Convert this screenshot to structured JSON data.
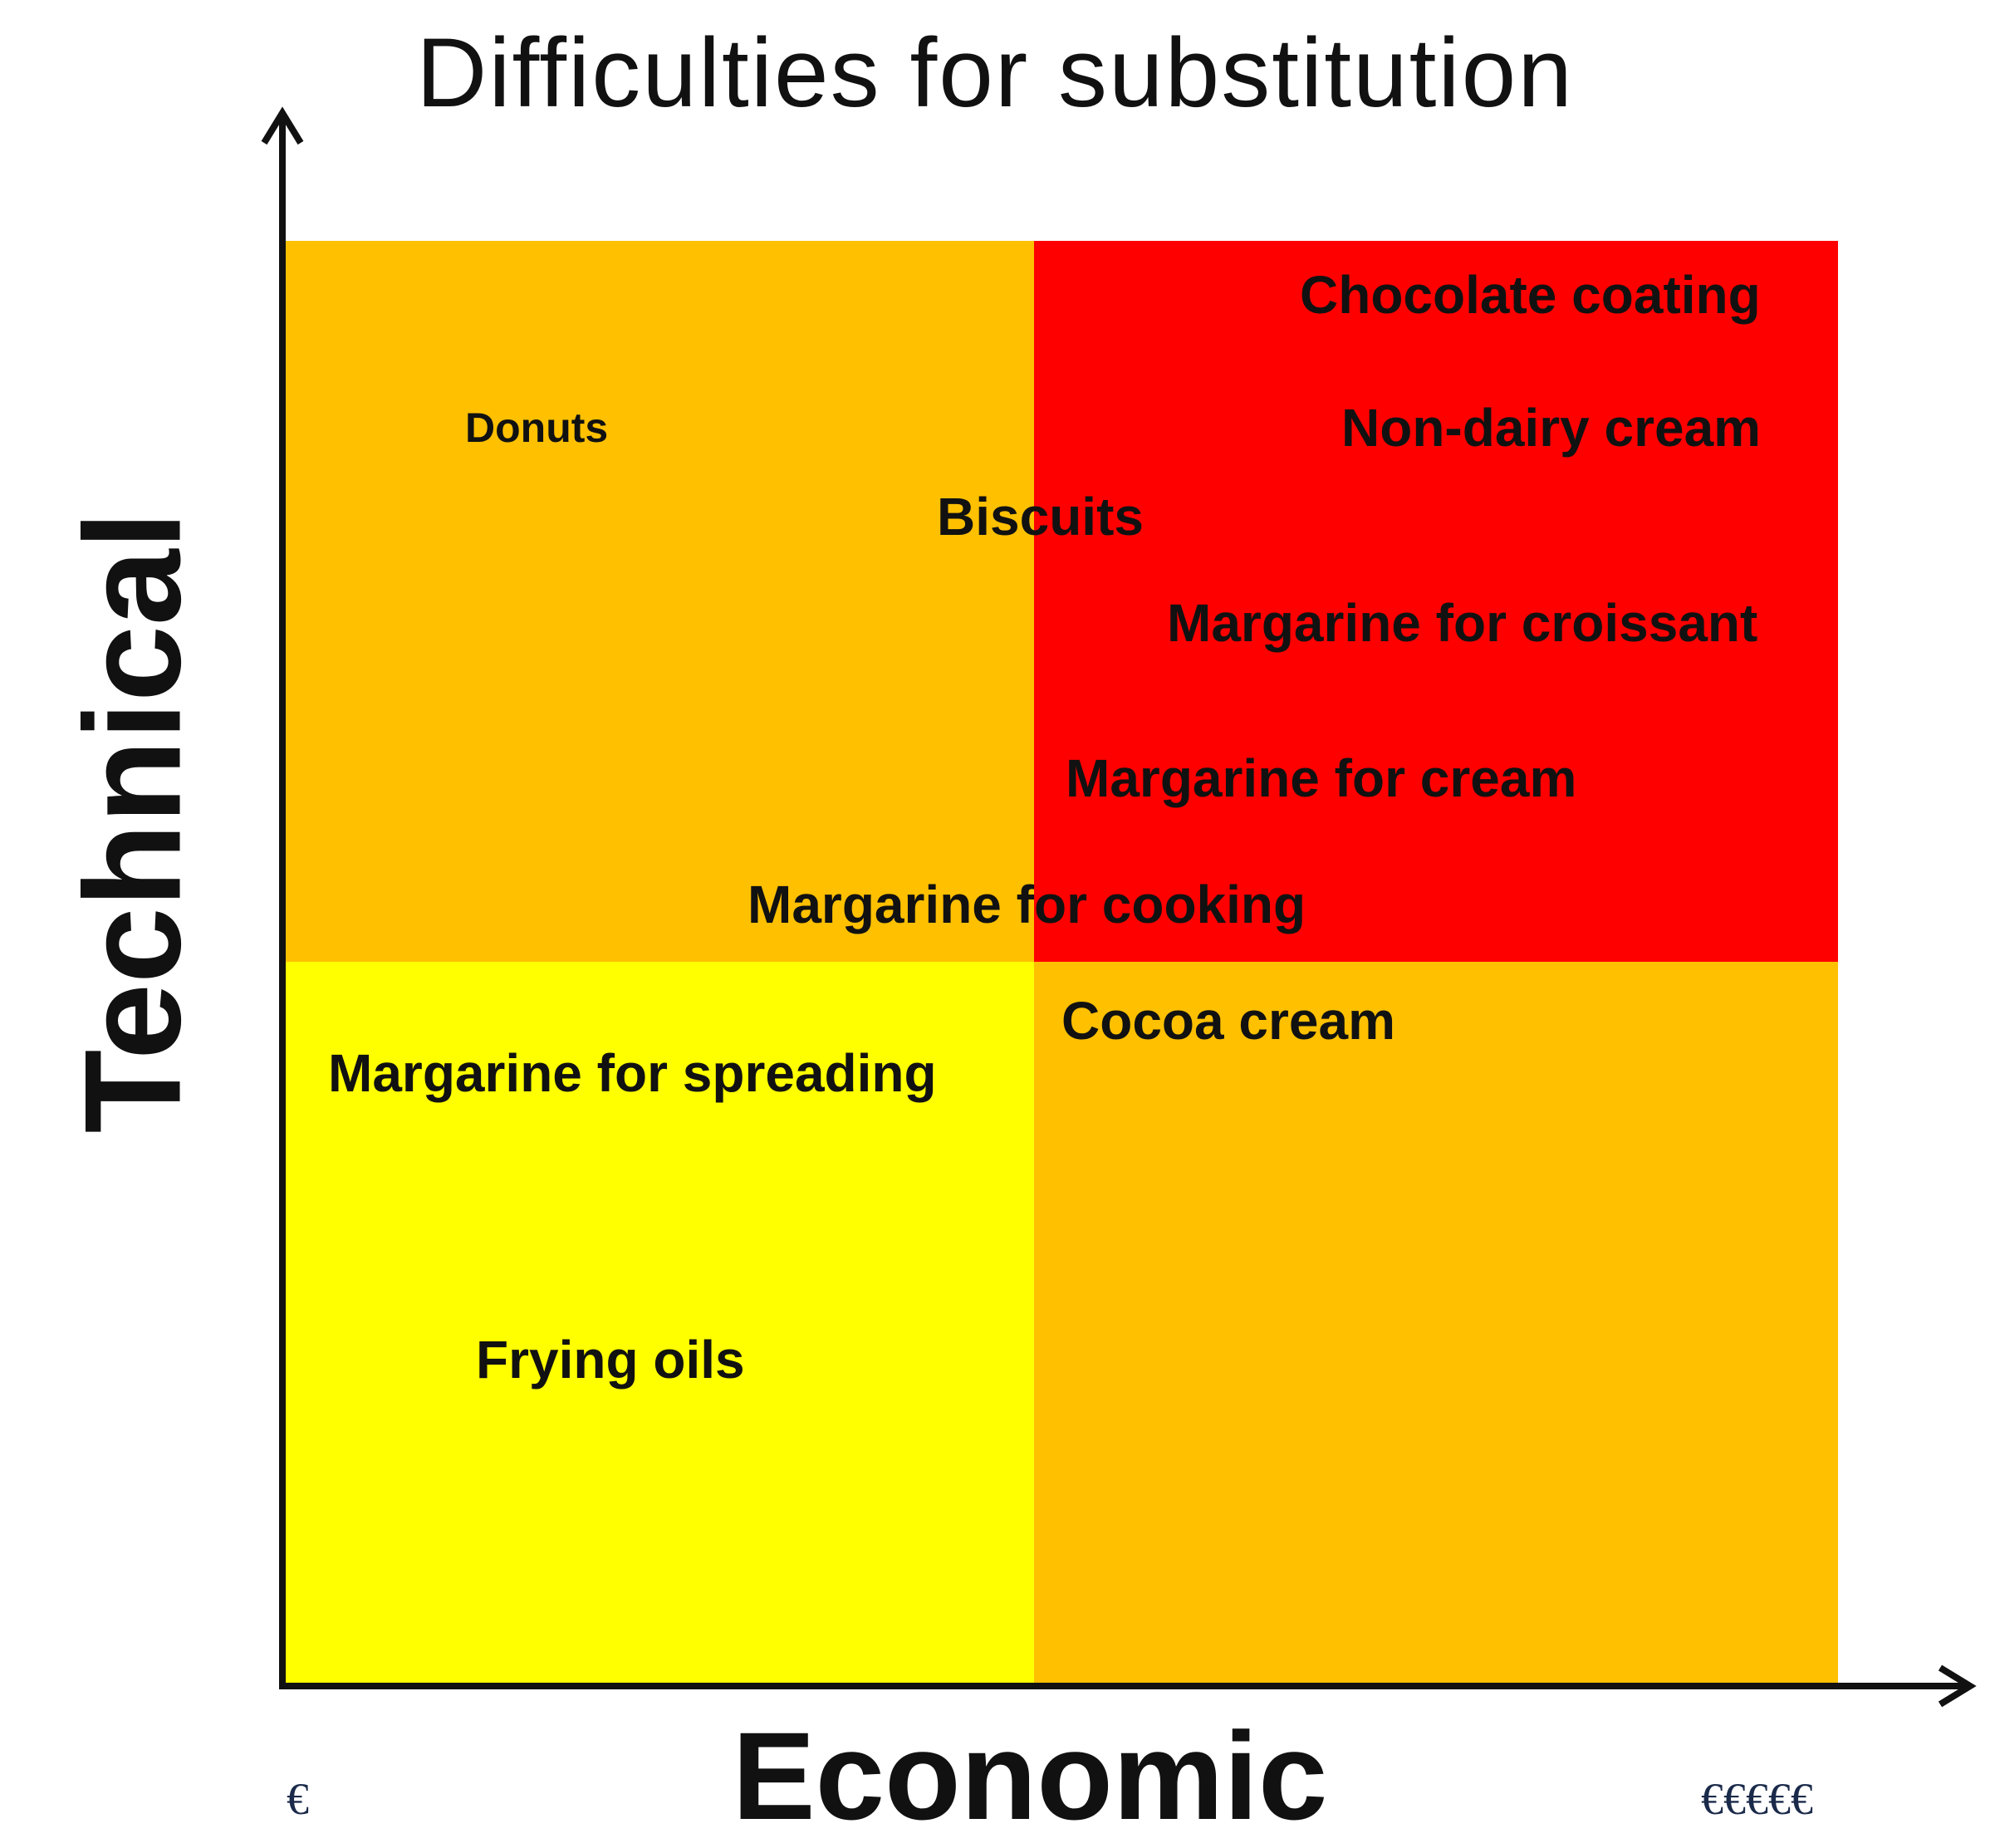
{
  "title": "Difficulties for substitution",
  "axes": {
    "y_label": "Technical",
    "x_label": "Economic",
    "x_min_label": "€",
    "x_max_label": "€€€€€"
  },
  "colors": {
    "low_low": "#ffff00",
    "medium": "#ffc000",
    "high_high": "#ff0000",
    "axis": "#111111"
  },
  "quadrants": {
    "top_left": "medium",
    "top_right": "high_high",
    "bottom_left": "low_low",
    "bottom_right": "medium"
  },
  "items": [
    {
      "label": "Chocolate coating"
    },
    {
      "label": "Non-dairy cream"
    },
    {
      "label": "Donuts"
    },
    {
      "label": "Biscuits"
    },
    {
      "label": "Margarine for croissant"
    },
    {
      "label": "Margarine for cream"
    },
    {
      "label": "Margarine for cooking"
    },
    {
      "label": "Cocoa cream"
    },
    {
      "label": "Margarine for spreading"
    },
    {
      "label": "Frying oils"
    }
  ]
}
